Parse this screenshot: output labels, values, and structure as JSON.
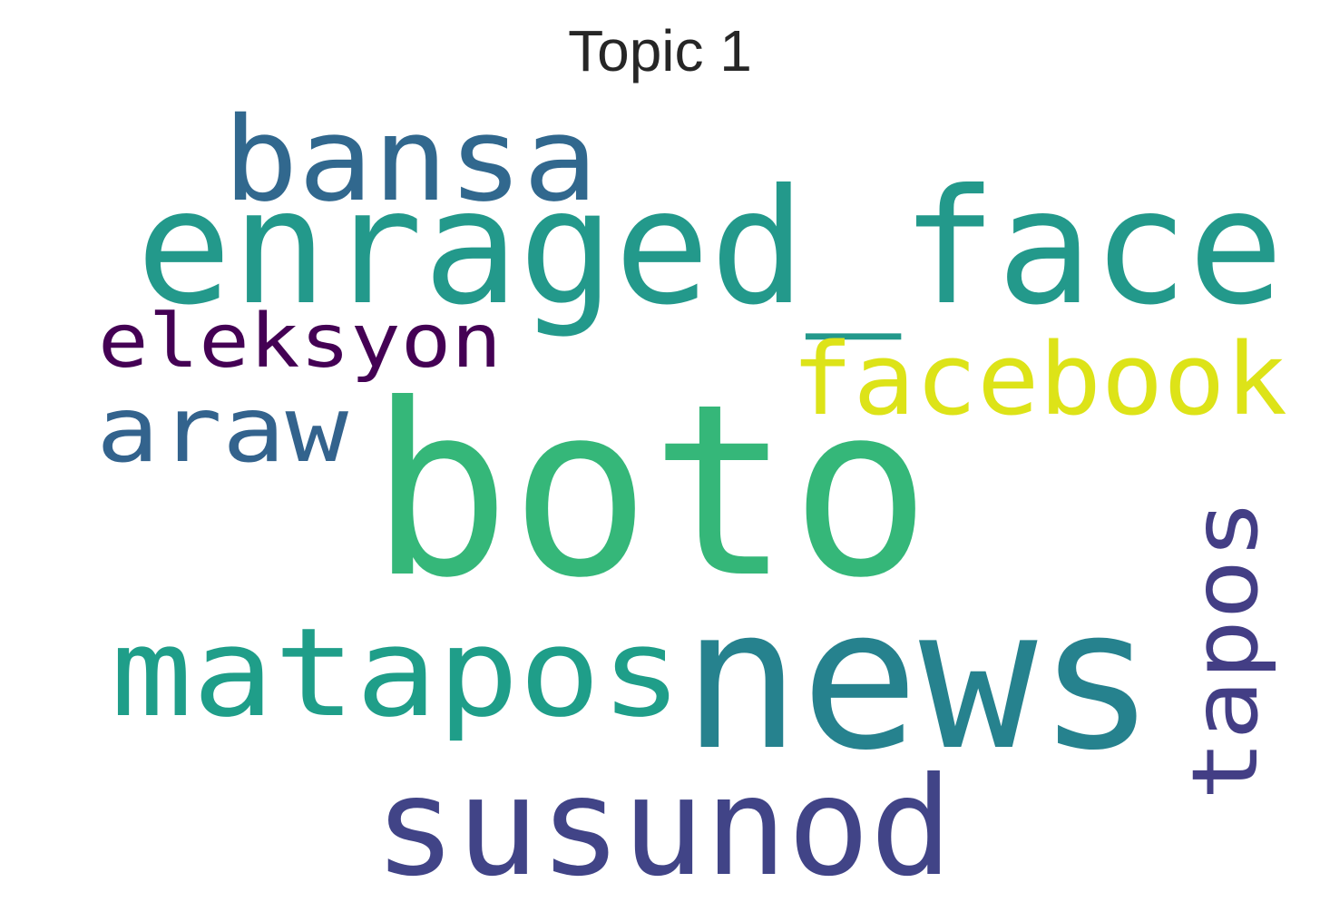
{
  "title": "Topic 1",
  "words": [
    {
      "text": "boto",
      "color": "#35b779"
    },
    {
      "text": "news",
      "color": "#26828e"
    },
    {
      "text": "enraged_face",
      "color": "#23998b"
    },
    {
      "text": "susunod",
      "color": "#414487"
    },
    {
      "text": "matapos",
      "color": "#1f9e89"
    },
    {
      "text": "bansa",
      "color": "#31688e"
    },
    {
      "text": "facebook",
      "color": "#dde318"
    },
    {
      "text": "araw",
      "color": "#33638d"
    },
    {
      "text": "tapos",
      "color": "#433e85"
    },
    {
      "text": "eleksyon",
      "color": "#440154"
    }
  ]
}
